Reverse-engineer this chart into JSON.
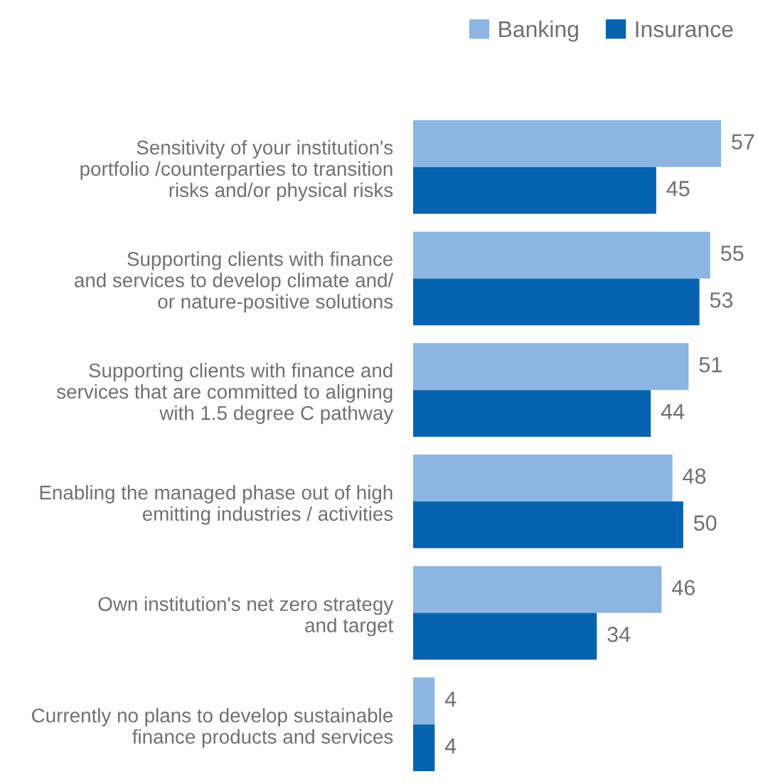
{
  "chart_data": {
    "type": "bar",
    "orientation": "horizontal",
    "categories": [
      "Sensitivity of your institution's\nportfolio /counterparties to transition\nrisks and/or physical risks",
      "Supporting clients with finance\nand services to develop climate and/\nor nature-positive solutions",
      "Supporting clients with finance and\nservices that are committed to aligning\nwith 1.5 degree C pathway",
      "Enabling the managed phase out of high\nemitting industries / activities",
      "Own institution's net zero strategy\nand target",
      "Currently no plans to develop sustainable\nfinance products and services"
    ],
    "series": [
      {
        "name": "Banking",
        "color": "#8cb6e1",
        "values": [
          57,
          55,
          51,
          48,
          46,
          4
        ]
      },
      {
        "name": "Insurance",
        "color": "#0563b0",
        "values": [
          45,
          53,
          44,
          50,
          34,
          4
        ]
      }
    ],
    "tick_labels": "y",
    "data_labels": true,
    "legend": "top right"
  }
}
